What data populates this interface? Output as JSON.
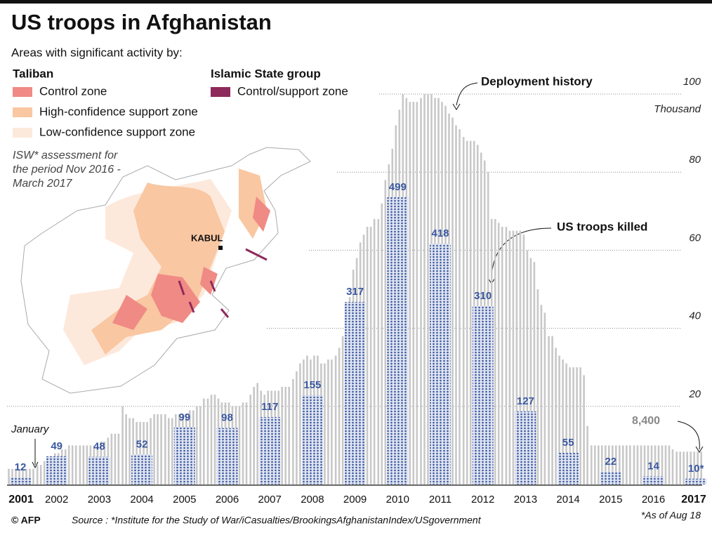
{
  "chart_data": {
    "type": "bar",
    "title": "US troops in Afghanistan",
    "subtitle": "Areas with significant activity by:",
    "map_legend": {
      "taliban_heading": "Taliban",
      "is_heading": "Islamic State group",
      "items": [
        {
          "label": "Control zone",
          "color": "#f08a84"
        },
        {
          "label": "High-confidence support zone",
          "color": "#f9c7a2"
        },
        {
          "label": "Low-confidence support zone",
          "color": "#fde9dc"
        },
        {
          "label": "Control/support zone",
          "color": "#8e2a5c"
        }
      ],
      "note": [
        "ISW* assessment for",
        "the period Nov 2016 -",
        "March 2017"
      ],
      "city": "KABUL"
    },
    "categories": [
      "2001",
      "2002",
      "2003",
      "2004",
      "2005",
      "2006",
      "2007",
      "2008",
      "2009",
      "2010",
      "2011",
      "2012",
      "2013",
      "2014",
      "2015",
      "2016",
      "2017"
    ],
    "deployment": {
      "name": "Deployment history",
      "color": "#c8c8c8",
      "values": [
        [
          4,
          4,
          4,
          4,
          4,
          4,
          4,
          4,
          4,
          4,
          4,
          4
        ],
        [
          5,
          5,
          6,
          7,
          7,
          8,
          8,
          9,
          9,
          10,
          10,
          10
        ],
        [
          10,
          10,
          10,
          10,
          10,
          10,
          11,
          11,
          12,
          13,
          13,
          13
        ],
        [
          20,
          18,
          17,
          17,
          16,
          16,
          16,
          16,
          17,
          18,
          18,
          18
        ],
        [
          18,
          17,
          17,
          18,
          18,
          18,
          18,
          19,
          19,
          20,
          20,
          22
        ],
        [
          22,
          23,
          23,
          22,
          21,
          21,
          21,
          20,
          20,
          20,
          21,
          21
        ],
        [
          23,
          25,
          26,
          24,
          23,
          24,
          24,
          24,
          24,
          25,
          25,
          25
        ],
        [
          27,
          29,
          31,
          32,
          33,
          32,
          33,
          33,
          31,
          31,
          32,
          32
        ],
        [
          33,
          35,
          38,
          42,
          48,
          55,
          58,
          62,
          64,
          66,
          66,
          68
        ],
        [
          68,
          72,
          78,
          82,
          86,
          92,
          96,
          100,
          99,
          98,
          98,
          98
        ],
        [
          99,
          100,
          100,
          100,
          99,
          99,
          98,
          97,
          95,
          94,
          92,
          91
        ],
        [
          89,
          88,
          88,
          88,
          87,
          85,
          83,
          80,
          68,
          68,
          67,
          66
        ],
        [
          66,
          65,
          65,
          65,
          65,
          64,
          60,
          58,
          57,
          50,
          46,
          44
        ],
        [
          38,
          38,
          35,
          33,
          32,
          31,
          30,
          30,
          30,
          30,
          28,
          15
        ],
        [
          10,
          10,
          10,
          10,
          10,
          10,
          10,
          10,
          10,
          10,
          10,
          10
        ],
        [
          10,
          10,
          10,
          10,
          10,
          10,
          10,
          10,
          10,
          10,
          10,
          9
        ],
        [
          8.4,
          8.4,
          8.4,
          8.4,
          8.4,
          8.4,
          8.4,
          8.4
        ]
      ]
    },
    "killed": {
      "name": "US troops killed",
      "color": "#3a57a0",
      "values": [
        12,
        49,
        48,
        52,
        99,
        98,
        117,
        155,
        317,
        499,
        418,
        310,
        127,
        55,
        22,
        14,
        10
      ],
      "value_labels": [
        "12",
        "49",
        "48",
        "52",
        "99",
        "98",
        "117",
        "155",
        "317",
        "499",
        "418",
        "310",
        "127",
        "55",
        "22",
        "14",
        "10*"
      ]
    },
    "ylim": [
      0,
      100
    ],
    "yticks": [
      20,
      40,
      60,
      80,
      100
    ],
    "y_unit": "Thousand",
    "grid": true,
    "annotations": {
      "last_deployment": "8,400",
      "start": "January",
      "as_of": "*As of Aug 18"
    },
    "source": "Source : *Institute for the Study of War/iCasualties/BrookingsAfghanistanIndex/USgovernment",
    "credit": "© AFP"
  }
}
